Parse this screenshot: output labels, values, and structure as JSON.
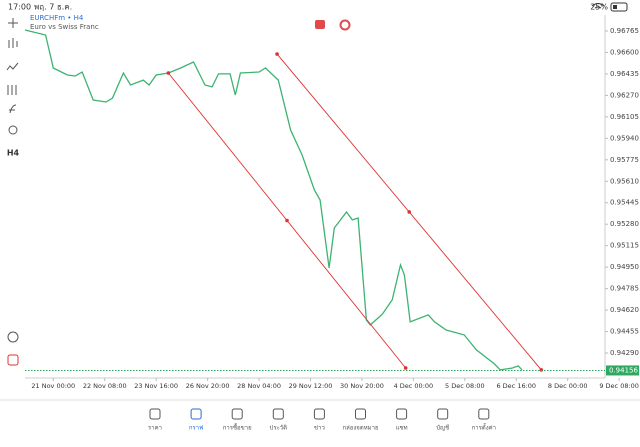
{
  "status_bar": {
    "time": "17:00",
    "date": "พฤ. 7 ธ.ค.",
    "battery": "25%"
  },
  "toolbar": {
    "timeframe": "H4"
  },
  "nav": {
    "items": [
      "ราคา",
      "กราฟ",
      "การซื้อขาย",
      "ประวัติ",
      "ข่าว",
      "กล่องจดหมาย",
      "แชท",
      "บัญชี",
      "การตั้งค่า"
    ],
    "active": 1
  },
  "chart_data": {
    "type": "line",
    "title": "EURCHFm • H4",
    "subtitle": "Euro vs Swiss Franc",
    "x": [
      -4.4,
      -1.2,
      0,
      2.2,
      3.4,
      4.5,
      6.2,
      8.2,
      9.2,
      10.9,
      12.0,
      14.0,
      14.9,
      16.0,
      17.9,
      19.8,
      21.8,
      23.6,
      24.7,
      25.7,
      27.5,
      28.3,
      29.1,
      32.0,
      33.0,
      35.0,
      36.9,
      38.7,
      40.6,
      41.5,
      42.9,
      43.7,
      45.6,
      46.5,
      47.4,
      48.7,
      49.3,
      51.2,
      52.7,
      54.0,
      54.6,
      55.5,
      58.3,
      59.3,
      61.1,
      63.9,
      65.8,
      68.6,
      69.5,
      71.4,
      72.3,
      72.9
    ],
    "series": [
      {
        "color": "#3cb371",
        "values": [
          0.96773,
          0.96734,
          0.96481,
          0.96427,
          0.96419,
          0.9645,
          0.96235,
          0.96219,
          0.9625,
          0.96442,
          0.9635,
          0.96388,
          0.9635,
          0.96427,
          0.96442,
          0.96481,
          0.96527,
          0.9635,
          0.96335,
          0.96435,
          0.96435,
          0.96273,
          0.96442,
          0.9645,
          0.96481,
          0.96388,
          0.96004,
          0.95812,
          0.95543,
          0.95466,
          0.94944,
          0.95251,
          0.95374,
          0.95313,
          0.95328,
          0.94544,
          0.94506,
          0.9459,
          0.94698,
          0.94967,
          0.9489,
          0.94529,
          0.94583,
          0.94529,
          0.94467,
          0.94429,
          0.94314,
          0.94206,
          0.9416,
          0.94175,
          0.94191,
          0.9416
        ]
      }
    ],
    "xlim": [
      -4.4,
      85.8
    ],
    "ylim": [
      0.94098,
      0.96888
    ],
    "xticks": [
      {
        "value": 0,
        "label": "21 Nov 00:00"
      },
      {
        "value": 8,
        "label": "22 Nov 08:00"
      },
      {
        "value": 16,
        "label": "23 Nov 16:00"
      },
      {
        "value": 24,
        "label": "26 Nov 20:00"
      },
      {
        "value": 32,
        "label": "28 Nov 04:00"
      },
      {
        "value": 40,
        "label": "29 Nov 12:00"
      },
      {
        "value": 48,
        "label": "30 Nov 20:00"
      },
      {
        "value": 56,
        "label": "4 Dec 00:00"
      },
      {
        "value": 64,
        "label": "5 Dec 08:00"
      },
      {
        "value": 72,
        "label": "6 Dec 16:00"
      },
      {
        "value": 80,
        "label": "8 Dec 00:00"
      },
      {
        "value": 88,
        "label": "9 Dec 08:00"
      }
    ],
    "yticks": [
      0.96765,
      {
        "value": 0.966,
        "label": "0.96600"
      },
      0.96435,
      {
        "value": 0.9627,
        "label": "0.96270"
      },
      0.96105,
      {
        "value": 0.9594,
        "label": "0.95940"
      },
      0.95775,
      {
        "value": 0.9561,
        "label": "0.95610"
      },
      0.95445,
      {
        "value": 0.9528,
        "label": "0.95280"
      },
      0.95115,
      {
        "value": 0.9495,
        "label": "0.94950"
      },
      0.94785,
      {
        "value": 0.9462,
        "label": "0.94620"
      },
      0.94455,
      {
        "value": 0.9429,
        "label": "0.94290"
      }
    ],
    "current_price": 0.94156,
    "current_price_color": "#2eaa60",
    "channel": {
      "color": "#e03030",
      "lines": [
        {
          "x": [
            17.9,
            54.8
          ],
          "y": [
            0.96442,
            0.94175
          ]
        },
        {
          "x": [
            34.8,
            75.9
          ],
          "y": [
            0.96588,
            0.9416
          ]
        }
      ]
    }
  }
}
